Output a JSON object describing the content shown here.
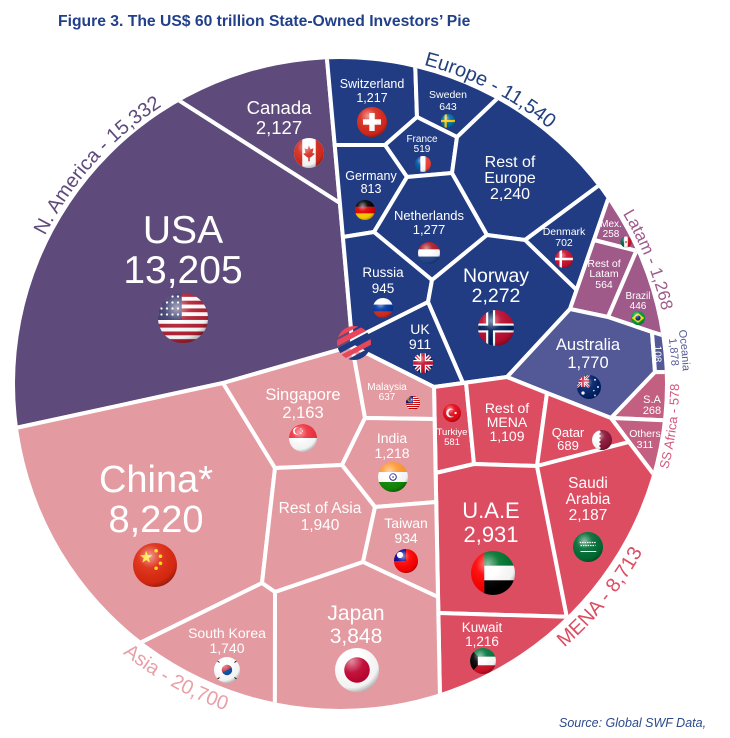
{
  "chart_data": {
    "type": "pie",
    "title": "Figure 3. The US$ 60 trillion State-Owned Investors’ Pie",
    "source": "Source: Global SWF Data,",
    "regions": [
      {
        "label_lines": [
          "N. America - 15,332"
        ],
        "value": 15332,
        "color": "#5e4a7b",
        "label_color": "#5e4a7b",
        "items": [
          {
            "label_lines": [
              "USA"
            ],
            "value_label": "13,205",
            "value": 13205,
            "icon": "flag-usa"
          },
          {
            "label_lines": [
              "Canada"
            ],
            "value_label": "2,127",
            "value": 2127,
            "icon": "flag-canada"
          }
        ]
      },
      {
        "label_lines": [
          "Europe - 11,540"
        ],
        "value": 11540,
        "color": "#213c83",
        "label_color": "#23407f",
        "items": [
          {
            "label_lines": [
              "Switzerland"
            ],
            "value_label": "1,217",
            "value": 1217,
            "icon": "flag-switzerland"
          },
          {
            "label_lines": [
              "Sweden"
            ],
            "value_label": "643",
            "value": 643,
            "icon": "flag-sweden"
          },
          {
            "label_lines": [
              "France"
            ],
            "value_label": "519",
            "value": 519,
            "icon": "flag-france"
          },
          {
            "label_lines": [
              "Germany"
            ],
            "value_label": "813",
            "value": 813,
            "icon": "flag-germany"
          },
          {
            "label_lines": [
              "Netherlands"
            ],
            "value_label": "1,277",
            "value": 1277,
            "icon": "flag-netherlands"
          },
          {
            "label_lines": [
              "Rest of",
              "Europe"
            ],
            "value_label": "2,240",
            "value": 2240
          },
          {
            "label_lines": [
              "Denmark"
            ],
            "value_label": "702",
            "value": 702,
            "icon": "flag-denmark"
          },
          {
            "label_lines": [
              "Russia"
            ],
            "value_label": "945",
            "value": 945,
            "icon": "flag-russia"
          },
          {
            "label_lines": [
              "Norway"
            ],
            "value_label": "2,272",
            "value": 2272,
            "icon": "flag-norway"
          },
          {
            "label_lines": [
              "UK"
            ],
            "value_label": "911",
            "value": 911,
            "icon": "flag-uk"
          }
        ]
      },
      {
        "label_lines": [
          "Latam - 1,268"
        ],
        "value": 1268,
        "color": "#a05a8a",
        "label_color": "#a05a8a",
        "items": [
          {
            "label_lines": [
              "Mex."
            ],
            "value_label": "258",
            "value": 258,
            "icon": "flag-mexico"
          },
          {
            "label_lines": [
              "Rest of",
              "Latam"
            ],
            "value_label": "564",
            "value": 564
          },
          {
            "label_lines": [
              "Brazil"
            ],
            "value_label": "446",
            "value": 446,
            "icon": "flag-brazil"
          }
        ]
      },
      {
        "label_lines": [
          "Oceania",
          "1,878"
        ],
        "value": 1878,
        "color": "#535896",
        "label_color": "#555a98",
        "items": [
          {
            "label_lines": [
              "Australia"
            ],
            "value_label": "1,770",
            "value": 1770,
            "icon": "flag-australia"
          },
          {
            "label_lines": [],
            "value_label": "108",
            "value": 108
          }
        ]
      },
      {
        "label_lines": [
          "SS Africa - 578"
        ],
        "value": 578,
        "color": "#c35f80",
        "label_color": "#d4577c",
        "items": [
          {
            "label_lines": [
              "S.A"
            ],
            "value_label": "268",
            "value": 268
          },
          {
            "label_lines": [
              "Others"
            ],
            "value_label": "311",
            "value": 311
          }
        ]
      },
      {
        "label_lines": [
          "MENA - 8,713"
        ],
        "value": 8713,
        "color": "#dc4d62",
        "label_color": "#dc4d62",
        "items": [
          {
            "label_lines": [
              "Turkiye"
            ],
            "value_label": "581",
            "value": 581,
            "icon": "flag-turkiye"
          },
          {
            "label_lines": [
              "Rest of",
              "MENA"
            ],
            "value_label": "1,109",
            "value": 1109
          },
          {
            "label_lines": [
              "Qatar"
            ],
            "value_label": "689",
            "value": 689,
            "icon": "flag-qatar"
          },
          {
            "label_lines": [
              "U.A.E"
            ],
            "value_label": "2,931",
            "value": 2931,
            "icon": "flag-uae"
          },
          {
            "label_lines": [
              "Saudi",
              "Arabia"
            ],
            "value_label": "2,187",
            "value": 2187,
            "icon": "flag-saudi-arabia"
          },
          {
            "label_lines": [
              "Kuwait"
            ],
            "value_label": "1,216",
            "value": 1216,
            "icon": "flag-kuwait"
          }
        ]
      },
      {
        "label_lines": [
          "Asia - 20,700"
        ],
        "value": 20700,
        "color": "#e39aa1",
        "label_color": "#e8a0a7",
        "items": [
          {
            "label_lines": [
              "China*"
            ],
            "value_label": "8,220",
            "value": 8220,
            "icon": "flag-china"
          },
          {
            "label_lines": [
              "Singapore"
            ],
            "value_label": "2,163",
            "value": 2163,
            "icon": "flag-singapore"
          },
          {
            "label_lines": [
              "Malaysia"
            ],
            "value_label": "637",
            "value": 637,
            "icon": "flag-malaysia"
          },
          {
            "label_lines": [
              "India"
            ],
            "value_label": "1,218",
            "value": 1218,
            "icon": "flag-india"
          },
          {
            "label_lines": [
              "Rest of Asia"
            ],
            "value_label": "1,940",
            "value": 1940
          },
          {
            "label_lines": [
              "Taiwan"
            ],
            "value_label": "934",
            "value": 934,
            "icon": "flag-taiwan"
          },
          {
            "label_lines": [
              "South Korea"
            ],
            "value_label": "1,740",
            "value": 1740,
            "icon": "flag-south-korea"
          },
          {
            "label_lines": [
              "Japan"
            ],
            "value_label": "3,848",
            "value": 3848,
            "icon": "flag-japan"
          }
        ]
      }
    ]
  }
}
